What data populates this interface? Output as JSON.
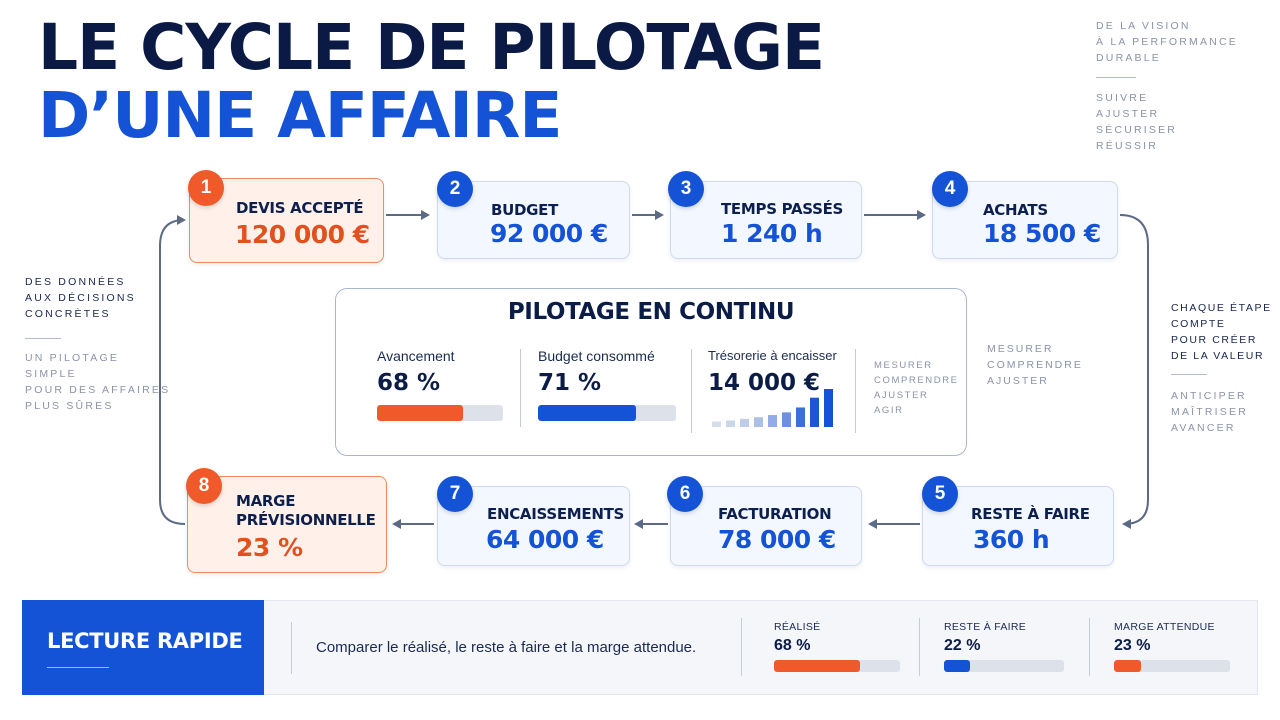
{
  "title": {
    "line1": "LE CYCLE DE PILOTAGE",
    "line2": "D’UNE AFFAIRE"
  },
  "top_right": {
    "tagline": [
      "DE LA VISION",
      "À LA PERFORMANCE",
      "DURABLE"
    ],
    "verbs": [
      "SUIVRE",
      "AJUSTER",
      "SÉCURISER",
      "RÉUSSIR"
    ]
  },
  "left_side": {
    "heading": [
      "DES DONNÉES",
      "AUX DÉCISIONS",
      "CONCRÈTES"
    ],
    "sub": [
      "UN PILOTAGE",
      "SIMPLE",
      "POUR DES AFFAIRES",
      "PLUS SÛRES"
    ]
  },
  "right_side": {
    "heading": [
      "CHAQUE ÉTAPE",
      "COMPTE",
      "POUR CRÉER",
      "DE LA VALEUR"
    ],
    "sub": [
      "ANTICIPER",
      "MAÎTRISER",
      "AVANCER"
    ]
  },
  "steps": [
    {
      "num": "1",
      "label": "DEVIS ACCEPTÉ",
      "value": "120 000 €"
    },
    {
      "num": "2",
      "label": "BUDGET",
      "value": "92 000 €"
    },
    {
      "num": "3",
      "label": "TEMPS PASSÉS",
      "value": "1 240 h"
    },
    {
      "num": "4",
      "label": "ACHATS",
      "value": "18 500 €"
    },
    {
      "num": "5",
      "label": "RESTE À FAIRE",
      "value": "360 h"
    },
    {
      "num": "6",
      "label": "FACTURATION",
      "value": "78 000 €"
    },
    {
      "num": "7",
      "label": "ENCAISSEMENTS",
      "value": "64 000 €"
    },
    {
      "num": "8",
      "label_line1": "MARGE",
      "label_line2": "PRÉVISIONNELLE",
      "value": "23 %"
    }
  ],
  "panel": {
    "title": "PILOTAGE EN CONTINU",
    "metrics": [
      {
        "label": "Avancement",
        "value": "68 %",
        "fill": 0.68,
        "color": "#f0592a"
      },
      {
        "label": "Budget consommé",
        "value": "71 %",
        "fill": 0.71,
        "color": "#1553d6"
      },
      {
        "label": "Trésorerie à encaisser",
        "value": "14 000 €"
      }
    ],
    "trend_bars": [
      1,
      1.2,
      1.5,
      1.8,
      2.2,
      2.7,
      3.6,
      5.4,
      7.0
    ],
    "inner_words": [
      "MESURER",
      "COMPRENDRE",
      "AJUSTER",
      "AGIR"
    ],
    "outer_words": [
      "MESURER",
      "COMPRENDRE",
      "AJUSTER"
    ]
  },
  "quick_read": {
    "title": "LECTURE RAPIDE",
    "description": "Comparer le réalisé, le reste à faire et la marge attendue.",
    "kpis": [
      {
        "label": "RÉALISÉ",
        "value": "68 %",
        "fill": 0.68,
        "color": "#f0592a"
      },
      {
        "label": "RESTE À FAIRE",
        "value": "22 %",
        "fill": 0.22,
        "color": "#1553d6"
      },
      {
        "label": "MARGE ATTENDUE",
        "value": "23 %",
        "fill": 0.23,
        "color": "#f0592a"
      }
    ]
  },
  "colors": {
    "accent_blue": "#1553d6",
    "accent_orange": "#f0592a",
    "navy": "#0a1a44"
  }
}
